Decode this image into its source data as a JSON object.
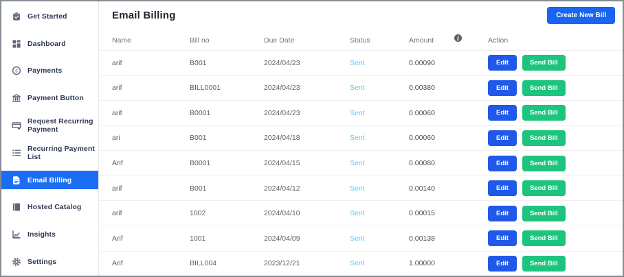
{
  "sidebar": {
    "items": [
      {
        "label": "Get Started",
        "icon": "clipboard-check-icon",
        "active": false
      },
      {
        "label": "Dashboard",
        "icon": "dashboard-grid-icon",
        "active": false
      },
      {
        "label": "Payments",
        "icon": "dollar-circle-icon",
        "active": false
      },
      {
        "label": "Payment Button",
        "icon": "bank-icon",
        "active": false
      },
      {
        "label": "Request Recurring Payment",
        "icon": "card-plus-icon",
        "active": false
      },
      {
        "label": "Recurring Payment List",
        "icon": "list-icon",
        "active": false
      },
      {
        "label": "Email Billing",
        "icon": "document-icon",
        "active": true
      },
      {
        "label": "Hosted Catalog",
        "icon": "book-icon",
        "active": false
      },
      {
        "label": "Insights",
        "icon": "chart-icon",
        "active": false
      },
      {
        "label": "Settings",
        "icon": "gear-icon",
        "active": false
      }
    ]
  },
  "header": {
    "title": "Email Billing",
    "create_button_label": "Create New Bill"
  },
  "table": {
    "columns": {
      "name": "Name",
      "bill_no": "Bill no",
      "due_date": "Due Date",
      "status": "Status",
      "amount": "Amount",
      "action": "Action"
    },
    "info_icon_glyph": "i",
    "action_buttons": {
      "edit": "Edit",
      "send": "Send Bill"
    },
    "rows": [
      {
        "name": "arif",
        "bill_no": "B001",
        "due_date": "2024/04/23",
        "status": "Sent",
        "amount": "0.00090"
      },
      {
        "name": "arif",
        "bill_no": "BILL0001",
        "due_date": "2024/04/23",
        "status": "Sent",
        "amount": "0.00380"
      },
      {
        "name": "arif",
        "bill_no": "B0001",
        "due_date": "2024/04/23",
        "status": "Sent",
        "amount": "0.00060"
      },
      {
        "name": "ari",
        "bill_no": "B001",
        "due_date": "2024/04/18",
        "status": "Sent",
        "amount": "0.00060"
      },
      {
        "name": "Arif",
        "bill_no": "B0001",
        "due_date": "2024/04/15",
        "status": "Sent",
        "amount": "0.00080"
      },
      {
        "name": "arif",
        "bill_no": "B001",
        "due_date": "2024/04/12",
        "status": "Sent",
        "amount": "0.00140"
      },
      {
        "name": "arif",
        "bill_no": "1002",
        "due_date": "2024/04/10",
        "status": "Sent",
        "amount": "0.00015"
      },
      {
        "name": "Arif",
        "bill_no": "1001",
        "due_date": "2024/04/09",
        "status": "Sent",
        "amount": "0.00138"
      },
      {
        "name": "Arif",
        "bill_no": "BILL004",
        "due_date": "2023/12/21",
        "status": "Sent",
        "amount": "1.00000"
      }
    ]
  },
  "colors": {
    "active_sidebar_item": "#1b6ef3",
    "primary_button_blue": "#1765f1",
    "edit_button_blue": "#2059e9",
    "send_button_green": "#1dc47e",
    "sent_status_blue": "#5ec7f0"
  }
}
